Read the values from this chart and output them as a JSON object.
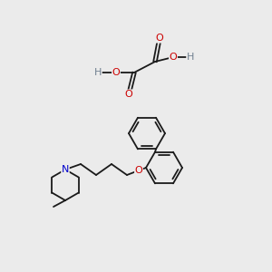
{
  "bg_color": "#ebebeb",
  "bond_color": "#1a1a1a",
  "bond_width": 1.3,
  "atom_colors": {
    "C": "#1a1a1a",
    "O": "#cc0000",
    "N": "#0000cc",
    "H": "#708090"
  },
  "font_size_atom": 8.0,
  "font_size_H": 7.5
}
